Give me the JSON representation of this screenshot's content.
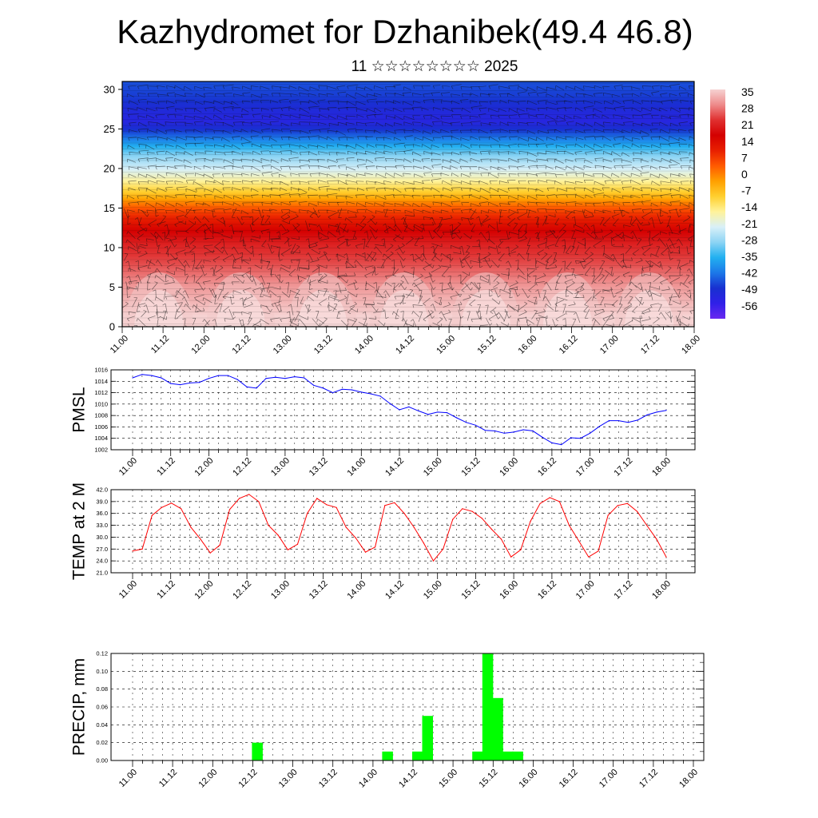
{
  "title": "Kazhydromet for Dzhanibek(49.4 46.8)",
  "subtitle": "11 ☆☆☆☆☆☆☆☆ 2025",
  "time_ticks": [
    "11.00",
    "11.12",
    "12.00",
    "12.12",
    "13.00",
    "13.12",
    "14.00",
    "14.12",
    "15.00",
    "15.12",
    "16.00",
    "16.12",
    "17.00",
    "17.12",
    "18.00"
  ],
  "chart_data": [
    {
      "type": "heatmap",
      "x_ticks": [
        "11.00",
        "11.12",
        "12.00",
        "12.12",
        "13.00",
        "13.12",
        "14.00",
        "14.12",
        "15.00",
        "15.12",
        "16.00",
        "16.12",
        "17.00",
        "17.12",
        "18.00"
      ],
      "y_ticks": [
        0,
        5,
        10,
        15,
        20,
        25,
        30
      ],
      "ylim": [
        0,
        31
      ],
      "colorbar_labels": [
        "35",
        "28",
        "21",
        "14",
        "7",
        "0",
        "-7",
        "-14",
        "-21",
        "-28",
        "-35",
        "-42",
        "-49",
        "-56"
      ],
      "colorbar_colors": [
        "#f6d2d2",
        "#ee8a8a",
        "#e03030",
        "#d40000",
        "#e82000",
        "#ff5a00",
        "#ffa000",
        "#ffd030",
        "#fff39a",
        "#d8f0f8",
        "#8cd4f4",
        "#22b0f0",
        "#1c78e8",
        "#1830d0",
        "#3020e8",
        "#6a28f0"
      ],
      "temperature_profile": [
        [
          0,
          38
        ],
        [
          2,
          34
        ],
        [
          5,
          30
        ],
        [
          8,
          24
        ],
        [
          10,
          21
        ],
        [
          12,
          16
        ],
        [
          14,
          8
        ],
        [
          15,
          3
        ],
        [
          16,
          -3
        ],
        [
          17,
          -10
        ],
        [
          18,
          -15
        ],
        [
          19,
          -20
        ],
        [
          20,
          -24
        ],
        [
          21,
          -28
        ],
        [
          22,
          -32
        ],
        [
          23,
          -38
        ],
        [
          24,
          -44
        ],
        [
          25,
          -50
        ],
        [
          26,
          -54
        ],
        [
          27,
          -53
        ],
        [
          28,
          -51
        ],
        [
          29,
          -49
        ],
        [
          30,
          -48
        ],
        [
          31,
          -47
        ]
      ],
      "has_wind_vectors": true
    },
    {
      "type": "line",
      "ylabel": "PMSL",
      "ylim": [
        1002,
        1016
      ],
      "y_ticks": [
        "1016",
        "1014",
        "1012",
        "1010",
        "1008",
        "1006",
        "1004",
        "1002"
      ],
      "color": "#0000ff",
      "values": [
        1014.6,
        1015.2,
        1015.0,
        1014.6,
        1013.6,
        1013.4,
        1013.7,
        1013.8,
        1014.5,
        1015.0,
        1015.0,
        1014.3,
        1013.0,
        1012.8,
        1014.5,
        1014.7,
        1014.5,
        1014.8,
        1014.6,
        1013.3,
        1012.8,
        1012.0,
        1012.6,
        1012.5,
        1012.1,
        1011.8,
        1011.4,
        1010.1,
        1009.0,
        1009.5,
        1008.8,
        1008.2,
        1008.6,
        1008.5,
        1007.6,
        1006.8,
        1006.3,
        1005.4,
        1005.3,
        1004.9,
        1005.1,
        1005.5,
        1005.3,
        1004.2,
        1003.2,
        1002.9,
        1004.1,
        1004.0,
        1004.9,
        1006.1,
        1007.1,
        1007.1,
        1006.8,
        1007.2,
        1008.1,
        1008.6,
        1008.9
      ]
    },
    {
      "type": "line",
      "ylabel": "TEMP at 2 M",
      "ylim": [
        21.0,
        42.0
      ],
      "y_ticks": [
        "42.0",
        "39.0",
        "36.0",
        "33.0",
        "30.0",
        "27.0",
        "24.0",
        "21.0"
      ],
      "color": "#ff0000",
      "values": [
        26.5,
        27.0,
        35.5,
        37.5,
        38.6,
        37.2,
        32.5,
        29.5,
        26.0,
        28.0,
        37.0,
        39.8,
        40.8,
        39.0,
        33.0,
        30.5,
        26.8,
        28.2,
        36.0,
        39.8,
        38.2,
        37.5,
        32.5,
        29.8,
        26.2,
        27.5,
        38.0,
        38.7,
        36.0,
        32.5,
        28.5,
        24.0,
        27.0,
        34.5,
        37.2,
        36.5,
        34.8,
        32.0,
        29.5,
        25.0,
        26.8,
        34.0,
        38.5,
        40.0,
        39.0,
        33.0,
        29.0,
        25.0,
        26.5,
        35.5,
        38.0,
        38.5,
        36.5,
        33.0,
        29.5,
        25.0
      ]
    },
    {
      "type": "bar",
      "ylabel": "PRECIP, mm",
      "ylim": [
        0.0,
        0.12
      ],
      "y_ticks": [
        "0.12",
        "0.10",
        "0.08",
        "0.06",
        "0.04",
        "0.02",
        "0.00"
      ],
      "color": "#00ff00",
      "bars": [
        {
          "time": "12.12",
          "value": 0.02
        },
        {
          "time": "14.03",
          "value": 0.01
        },
        {
          "time": "14.12",
          "value": 0.01
        },
        {
          "time": "14.15",
          "value": 0.05
        },
        {
          "time": "15.06",
          "value": 0.01
        },
        {
          "time": "15.09",
          "value": 0.12
        },
        {
          "time": "15.12",
          "value": 0.07
        },
        {
          "time": "15.15",
          "value": 0.01
        },
        {
          "time": "15.18",
          "value": 0.01
        }
      ]
    }
  ]
}
